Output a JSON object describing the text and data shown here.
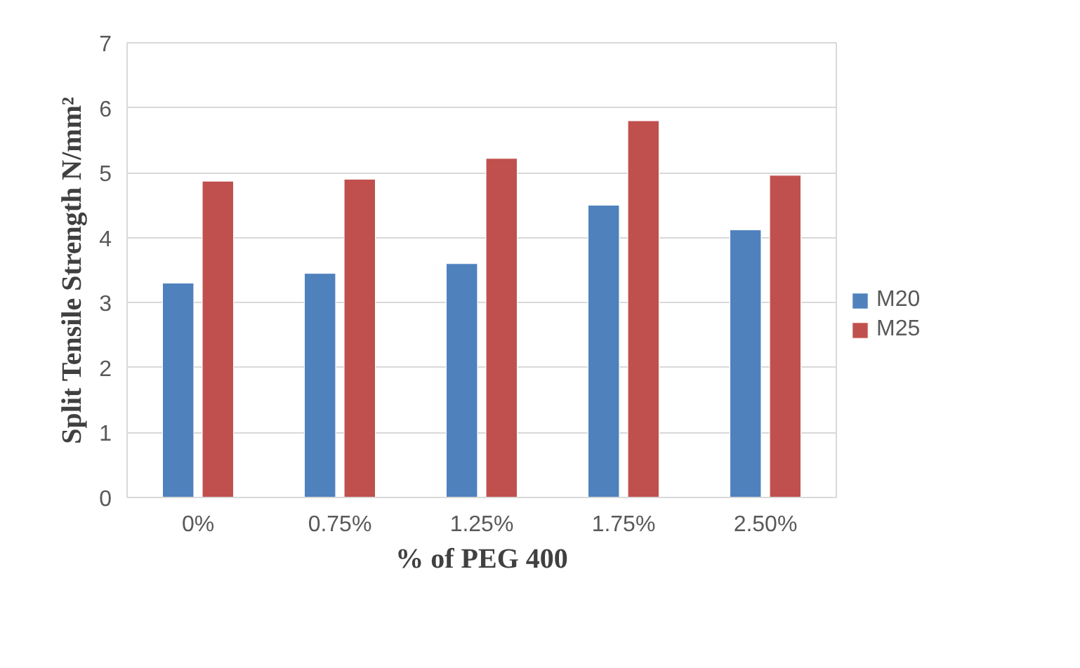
{
  "chart_data": {
    "type": "bar",
    "xlabel": "% of PEG 400",
    "ylabel": "Split Tensile Strength N/mm²",
    "categories": [
      "0%",
      "0.75%",
      "1.25%",
      "1.75%",
      "2.50%"
    ],
    "series": [
      {
        "name": "M20",
        "color": "#4f81bd",
        "values": [
          3.3,
          3.45,
          3.6,
          4.5,
          4.12
        ]
      },
      {
        "name": "M25",
        "color": "#c0504d",
        "values": [
          4.87,
          4.9,
          5.22,
          5.8,
          4.96
        ]
      }
    ],
    "ylim": [
      0,
      7
    ],
    "yticks": [
      0,
      1,
      2,
      3,
      4,
      5,
      6,
      7
    ],
    "grid": "y",
    "legend": "right"
  }
}
